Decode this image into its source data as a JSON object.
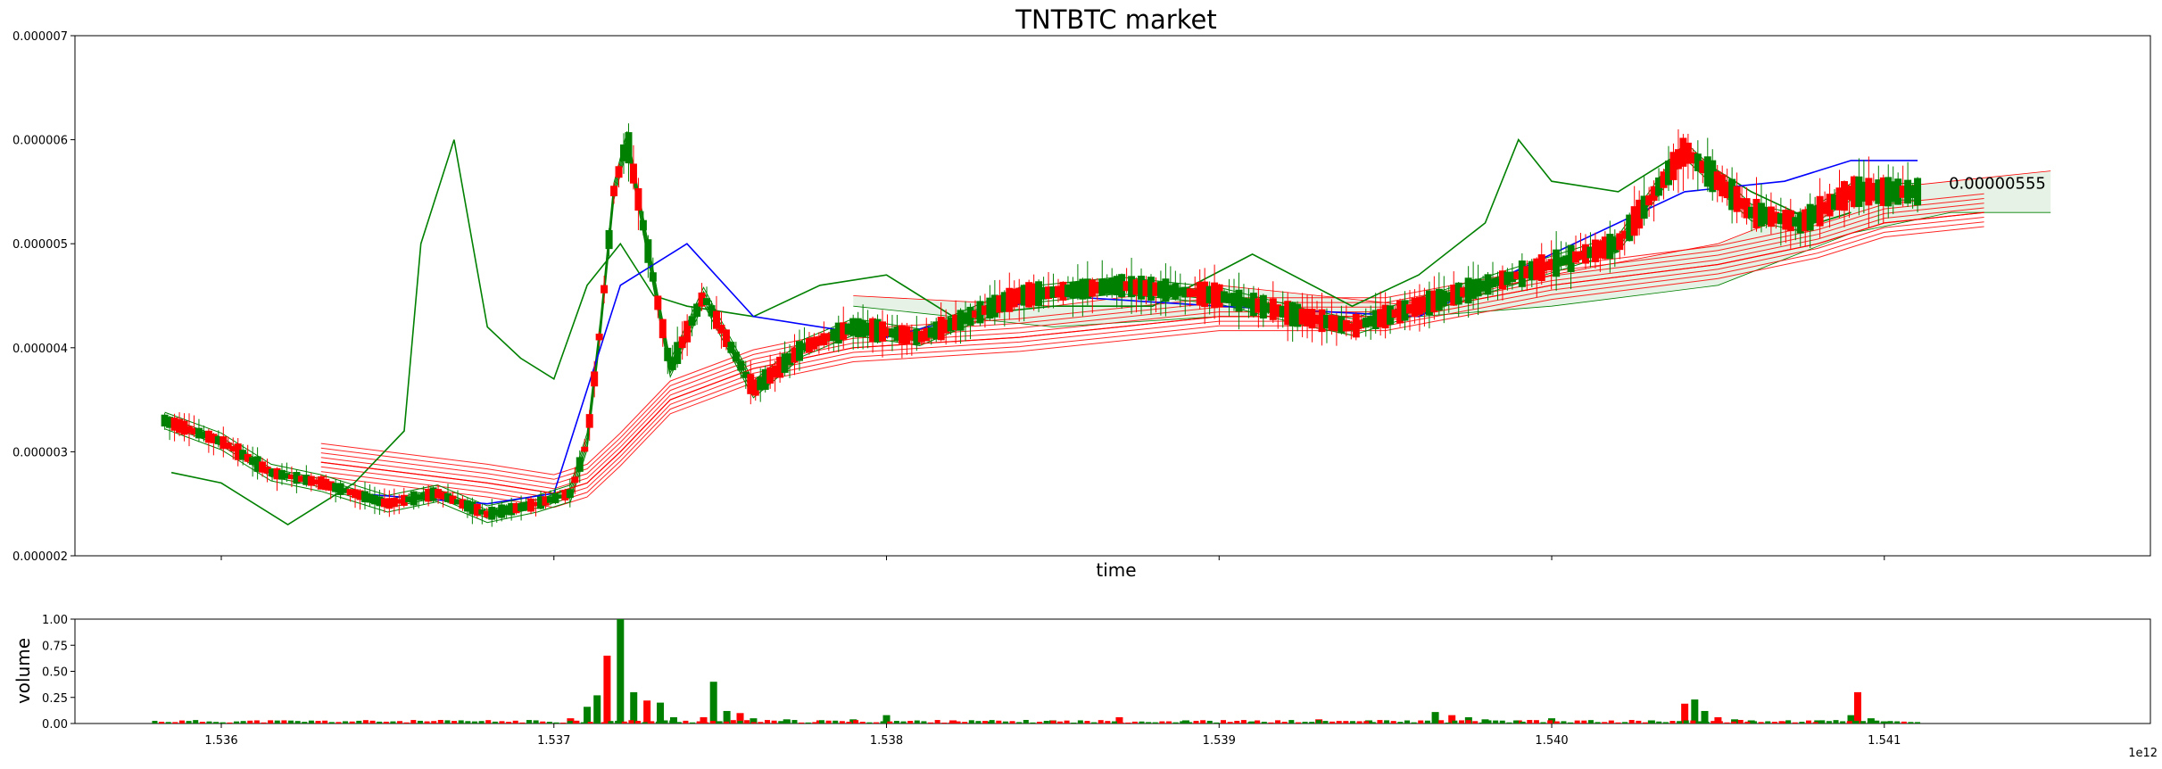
{
  "chart_data": [
    {
      "type": "candlestick",
      "title": "TNTBTC market",
      "xlabel": "time",
      "ylabel": "",
      "x_ticks": [
        "1.536",
        "1.537",
        "1.538",
        "1.539",
        "1.540",
        "1.541"
      ],
      "x_tick_values": [
        1.536,
        1.537,
        1.538,
        1.539,
        1.54,
        1.541
      ],
      "x_offset_label": "1e12",
      "xlim": [
        1.53556,
        1.5418
      ],
      "y_ticks": [
        "0.000002",
        "0.000003",
        "0.000004",
        "0.000005",
        "0.000006",
        "0.000007"
      ],
      "y_tick_values": [
        2e-06,
        3e-06,
        4e-06,
        5e-06,
        6e-06,
        7e-06
      ],
      "ylim": [
        2e-06,
        7e-06
      ],
      "annotation": {
        "text": "0.00000555",
        "x": 1.5411,
        "y": 5.53e-06
      },
      "price_path": {
        "x": [
          1.53583,
          1.536,
          1.53615,
          1.5363,
          1.5365,
          1.53665,
          1.5368,
          1.53695,
          1.53705,
          1.5371,
          1.53714,
          1.53718,
          1.53722,
          1.53735,
          1.53745,
          1.5376,
          1.53775,
          1.5379,
          1.5381,
          1.5384,
          1.5387,
          1.539,
          1.53925,
          1.5394,
          1.5396,
          1.5398,
          1.54,
          1.5402,
          1.5404,
          1.5406,
          1.54075,
          1.5409,
          1.5411
        ],
        "y": [
          3.3e-06,
          3.1e-06,
          2.8e-06,
          2.7e-06,
          2.5e-06,
          2.6e-06,
          2.4e-06,
          2.5e-06,
          2.6e-06,
          3.1e-06,
          4.2e-06,
          5.5e-06,
          6e-06,
          3.8e-06,
          4.5e-06,
          3.6e-06,
          4e-06,
          4.2e-06,
          4.1e-06,
          4.5e-06,
          4.6e-06,
          4.5e-06,
          4.3e-06,
          4.2e-06,
          4.4e-06,
          4.6e-06,
          4.8e-06,
          5e-06,
          5.9e-06,
          5.3e-06,
          5.2e-06,
          5.5e-06,
          5.5e-06
        ]
      },
      "series": [
        {
          "name": "",
          "color": "#008000",
          "x": [
            1.53585,
            1.536,
            1.5362,
            1.5364,
            1.53655,
            1.5366,
            1.5367,
            1.5368,
            1.5369,
            1.537,
            1.5371,
            1.5372,
            1.5373,
            1.5374,
            1.5376,
            1.5378,
            1.538,
            1.5382,
            1.5385,
            1.5388,
            1.5391,
            1.5394,
            1.5396,
            1.5398,
            1.5399,
            1.54,
            1.5402,
            1.5404,
            1.5406,
            1.5408,
            1.5409
          ],
          "y": [
            2.8e-06,
            2.7e-06,
            2.3e-06,
            2.7e-06,
            3.2e-06,
            5e-06,
            6e-06,
            4.2e-06,
            3.9e-06,
            3.7e-06,
            4.6e-06,
            5e-06,
            4.5e-06,
            4.4e-06,
            4.3e-06,
            4.6e-06,
            4.7e-06,
            4.3e-06,
            4.4e-06,
            4.4e-06,
            4.9e-06,
            4.4e-06,
            4.7e-06,
            5.2e-06,
            6e-06,
            5.6e-06,
            5.5e-06,
            5.9e-06,
            5.5e-06,
            5.2e-06,
            5.3e-06
          ]
        },
        {
          "name": "",
          "color": "#0000ff",
          "x": [
            1.5364,
            1.5368,
            1.537,
            1.5372,
            1.5374,
            1.5376,
            1.538,
            1.5385,
            1.539,
            1.5396,
            1.54,
            1.5404,
            1.5407,
            1.5409,
            1.5411
          ],
          "y": [
            2.6e-06,
            2.5e-06,
            2.6e-06,
            4.6e-06,
            5e-06,
            4.3e-06,
            4.1e-06,
            4.5e-06,
            4.4e-06,
            4.3e-06,
            4.9e-06,
            5.5e-06,
            5.6e-06,
            5.8e-06,
            5.8e-06
          ]
        },
        {
          "name": "",
          "color": "#ff0000",
          "x": [
            1.5363,
            1.5368,
            1.537,
            1.5371,
            1.5372,
            1.53735,
            1.5376,
            1.5379,
            1.5384,
            1.539,
            1.5395,
            1.54,
            1.5405,
            1.5408,
            1.541,
            1.5413
          ],
          "y": [
            2.9e-06,
            2.7e-06,
            2.6e-06,
            2.7e-06,
            3e-06,
            3.5e-06,
            3.8e-06,
            4e-06,
            4.1e-06,
            4.3e-06,
            4.3e-06,
            4.6e-06,
            4.8e-06,
            5e-06,
            5.2e-06,
            5.3e-06
          ]
        }
      ],
      "cloud": {
        "x": [
          1.5379,
          1.5385,
          1.539,
          1.5396,
          1.54,
          1.5405,
          1.5409,
          1.5412,
          1.5415
        ],
        "upper": [
          4.5e-06,
          4.4e-06,
          4.6e-06,
          4.4e-06,
          4.7e-06,
          5e-06,
          5.5e-06,
          5.6e-06,
          5.7e-06
        ],
        "lower": [
          4.4e-06,
          4.2e-06,
          4.3e-06,
          4.3e-06,
          4.4e-06,
          4.6e-06,
          5.1e-06,
          5.3e-06,
          5.3e-06
        ]
      }
    },
    {
      "type": "bar",
      "ylabel": "volume",
      "ylim": [
        0,
        1
      ],
      "y_ticks": [
        "0.00",
        "0.25",
        "0.50",
        "0.75",
        "1.00"
      ],
      "y_tick_values": [
        0,
        0.25,
        0.5,
        0.75,
        1.0
      ],
      "x_ticks": [
        "1.536",
        "1.537",
        "1.538",
        "1.539",
        "1.540",
        "1.541"
      ],
      "x_tick_values": [
        1.536,
        1.537,
        1.538,
        1.539,
        1.54,
        1.541
      ],
      "x_offset_label": "1e12",
      "xlim": [
        1.53556,
        1.5418
      ],
      "x": [
        1.53705,
        1.5371,
        1.53713,
        1.53716,
        1.5372,
        1.53724,
        1.53728,
        1.53732,
        1.53736,
        1.53745,
        1.53748,
        1.53752,
        1.53756,
        1.5376,
        1.5377,
        1.5378,
        1.5379,
        1.538,
        1.5382,
        1.5383,
        1.5385,
        1.5387,
        1.5389,
        1.5391,
        1.5393,
        1.53945,
        1.53965,
        1.5397,
        1.53975,
        1.5398,
        1.5399,
        1.54,
        1.5403,
        1.5404,
        1.54043,
        1.54046,
        1.5405,
        1.54055,
        1.5406,
        1.5407,
        1.5408,
        1.5409,
        1.54092,
        1.54096,
        1.541
      ],
      "values": [
        0.05,
        0.16,
        0.27,
        0.65,
        1.0,
        0.3,
        0.22,
        0.2,
        0.06,
        0.06,
        0.4,
        0.12,
        0.1,
        0.05,
        0.04,
        0.03,
        0.04,
        0.08,
        0.03,
        0.02,
        0.03,
        0.06,
        0.03,
        0.02,
        0.04,
        0.03,
        0.11,
        0.08,
        0.06,
        0.04,
        0.03,
        0.05,
        0.03,
        0.19,
        0.23,
        0.12,
        0.06,
        0.04,
        0.03,
        0.02,
        0.03,
        0.08,
        0.3,
        0.05,
        0.02
      ]
    }
  ]
}
